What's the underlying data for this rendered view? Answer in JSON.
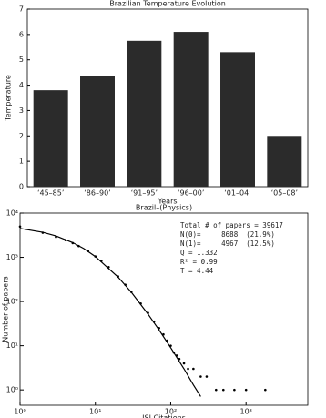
{
  "chart_data": [
    {
      "type": "bar",
      "title": "Brazilian Temperature Evolution",
      "x_label": "Years",
      "y_label": "Temperature",
      "categories": [
        "‘45–85’",
        "‘86–90’",
        "‘91–95’",
        "‘96–00’",
        "‘01–04’",
        "‘05–08’"
      ],
      "values": [
        3.8,
        4.35,
        5.75,
        6.1,
        5.3,
        2.0
      ],
      "color": "#2b2b2b",
      "ylim": [
        0,
        7
      ],
      "yticks": [
        0,
        1,
        2,
        3,
        4,
        5,
        6,
        7
      ]
    },
    {
      "type": "scatter",
      "title": "Brazil–(Physics)",
      "x_label": "ISI Citations",
      "y_label": "Number of papers",
      "log_x": true,
      "log_y": true,
      "color": "#000000",
      "x": [
        1,
        2,
        3,
        4,
        5,
        6,
        8,
        10,
        12,
        15,
        20,
        25,
        30,
        40,
        50,
        60,
        70,
        80,
        90,
        100,
        110,
        120,
        130,
        150,
        170,
        200,
        250,
        300,
        400,
        500,
        700,
        1000,
        1800
      ],
      "values": [
        4967,
        3600,
        2900,
        2450,
        2100,
        1800,
        1400,
        1050,
        830,
        600,
        370,
        240,
        165,
        90,
        55,
        35,
        25,
        18,
        13,
        10,
        7,
        6,
        5,
        4,
        3,
        3,
        2,
        2,
        1,
        1,
        1,
        1,
        1
      ],
      "fit_line": {
        "x": [
          1,
          2,
          3,
          5,
          7,
          10,
          20,
          30,
          50,
          70,
          100,
          150,
          200,
          250
        ],
        "values": [
          4500,
          3680,
          3040,
          2150,
          1580,
          1040,
          357,
          162,
          51.8,
          22.7,
          9.0,
          3.0,
          1.3,
          0.71
        ]
      },
      "annotations": [
        "Total # of papers = 39617",
        "N(0)=     8688  (21.9%)",
        "N(1)=     4967  (12.5%)",
        "Q = 1.332",
        "R² = 0.99",
        "T = 4.44"
      ],
      "xlim": [
        1,
        6600
      ],
      "ylim": [
        0.45,
        10000
      ],
      "xticks": [
        {
          "value": 1,
          "label": "10⁰"
        },
        {
          "value": 10,
          "label": "10¹"
        },
        {
          "value": 100,
          "label": "10²"
        },
        {
          "value": 1000,
          "label": "10³"
        }
      ],
      "yticks": [
        {
          "value": 1,
          "label": "10⁰"
        },
        {
          "value": 10,
          "label": "10¹"
        },
        {
          "value": 100,
          "label": "10²"
        },
        {
          "value": 1000,
          "label": "10³"
        },
        {
          "value": 10000,
          "label": "10⁴"
        }
      ]
    }
  ]
}
